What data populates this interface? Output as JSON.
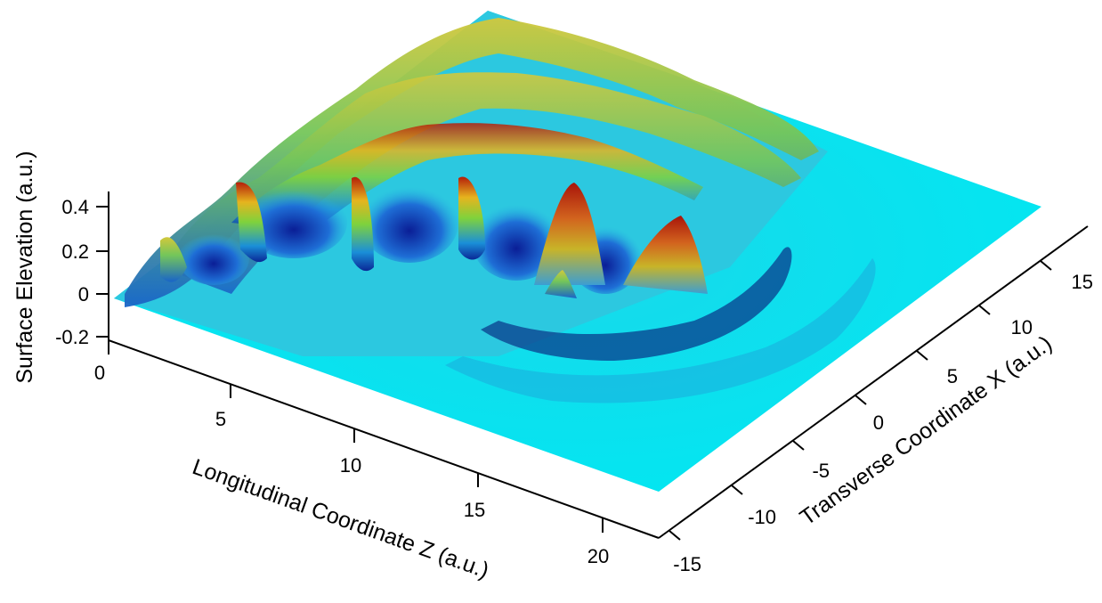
{
  "chart_data": {
    "type": "surface",
    "zlabel": "Surface Elevation (a.u.)",
    "xlabel": "Longitudinal Coordinate Z (a.u.)",
    "ylabel": "Transverse Coordinate X (a.u.)",
    "zticks": [
      "0.4",
      "0.2",
      "0",
      "-0.2"
    ],
    "xticks": [
      "0",
      "5",
      "10",
      "15",
      "20"
    ],
    "yticks": [
      "-15",
      "-10",
      "-5",
      "0",
      "5",
      "10",
      "15"
    ],
    "xlim": [
      0,
      22
    ],
    "ylim": [
      -15,
      18
    ],
    "zlim": [
      -0.2,
      0.4
    ],
    "colormap": [
      "#0a1e8c",
      "#1e64d2",
      "#00e6f0",
      "#b4e632",
      "#e6b41e",
      "#b41e0a"
    ],
    "description_values": {
      "peak_elevation": 0.4,
      "peak_location_z": 13,
      "peak_location_x": 4
    }
  }
}
